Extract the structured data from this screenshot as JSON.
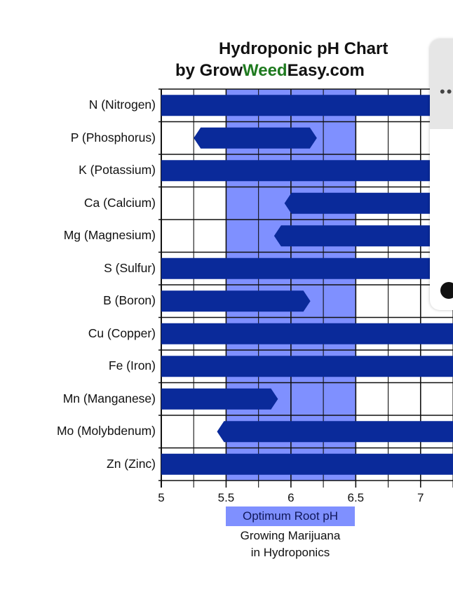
{
  "title": {
    "line1": "Hydroponic pH Chart",
    "line2_prefix": "by Grow",
    "line2_green": "Weed",
    "line2_suffix": "Easy.com",
    "green_color": "#1f7a1f"
  },
  "chart_data": {
    "type": "bar",
    "orientation": "horizontal-range",
    "title": "Hydroponic pH Chart by GrowWeedEasy.com",
    "xlim": [
      5.0,
      7.25
    ],
    "x_ticks": [
      5,
      5.5,
      6,
      6.5,
      7
    ],
    "x_tick_labels": [
      "5",
      "5.5",
      "6",
      "6.5",
      "7"
    ],
    "grid": true,
    "optimum_range": [
      5.5,
      6.5
    ],
    "bar_color": "#0a2a9a",
    "highlight_color": "#7f90ff",
    "rows": [
      {
        "label": "N (Nitrogen)",
        "start": 5.0,
        "end": 7.25,
        "start_taper": false
      },
      {
        "label": "P (Phosphorus)",
        "start": 5.25,
        "end": 6.2,
        "start_taper": true
      },
      {
        "label": "K (Potassium)",
        "start": 5.0,
        "end": 7.25,
        "start_taper": false
      },
      {
        "label": "Ca (Calcium)",
        "start": 5.95,
        "end": 7.25,
        "start_taper": true
      },
      {
        "label": "Mg (Magnesium)",
        "start": 5.87,
        "end": 7.25,
        "start_taper": true
      },
      {
        "label": "S (Sulfur)",
        "start": 5.0,
        "end": 7.25,
        "start_taper": false
      },
      {
        "label": "B (Boron)",
        "start": 5.0,
        "end": 6.15,
        "start_taper": false
      },
      {
        "label": "Cu (Copper)",
        "start": 5.0,
        "end": 7.25,
        "start_taper": false
      },
      {
        "label": "Fe (Iron)",
        "start": 5.0,
        "end": 7.25,
        "start_taper": false
      },
      {
        "label": "Mn (Manganese)",
        "start": 5.0,
        "end": 5.9,
        "start_taper": false
      },
      {
        "label": "Mo (Molybdenum)",
        "start": 5.43,
        "end": 7.25,
        "start_taper": true
      },
      {
        "label": "Zn (Zinc)",
        "start": 5.0,
        "end": 7.25,
        "start_taper": false
      }
    ],
    "annotation": "Optimum Root pH",
    "caption_line1": "Growing Marijuana",
    "caption_line2": "in Hydroponics"
  }
}
